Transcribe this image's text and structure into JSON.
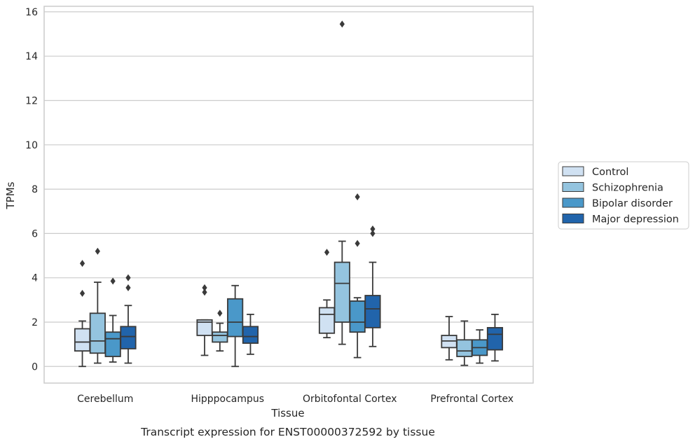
{
  "chart_data": {
    "type": "box",
    "xlabel": "Tissue",
    "ylabel": "TPMs",
    "caption": "Transcript expression for ENST00000372592 by tissue",
    "ylim": [
      -0.75,
      16.25
    ],
    "yticks": [
      0,
      2,
      4,
      6,
      8,
      10,
      12,
      14,
      16
    ],
    "grid": "horizontal",
    "legend_position": "right",
    "categories": [
      "Cerebellum",
      "Hipppocampus",
      "Orbitofontal Cortex",
      "Prefrontal Cortex"
    ],
    "series": [
      {
        "name": "Control",
        "color": "#d0e1f2",
        "boxes": [
          {
            "whisker_low": 0.0,
            "q1": 0.7,
            "median": 1.1,
            "q3": 1.7,
            "whisker_high": 2.05,
            "outliers": [
              3.3,
              4.65
            ]
          },
          {
            "whisker_low": 0.5,
            "q1": 1.4,
            "median": 2.0,
            "q3": 2.1,
            "whisker_high": 2.1,
            "outliers": [
              3.35,
              3.55
            ]
          },
          {
            "whisker_low": 1.3,
            "q1": 1.5,
            "median": 2.35,
            "q3": 2.65,
            "whisker_high": 3.0,
            "outliers": [
              5.15
            ]
          },
          {
            "whisker_low": 0.3,
            "q1": 0.85,
            "median": 1.15,
            "q3": 1.4,
            "whisker_high": 2.25,
            "outliers": []
          }
        ]
      },
      {
        "name": "Schizophrenia",
        "color": "#94c4df",
        "boxes": [
          {
            "whisker_low": 0.15,
            "q1": 0.6,
            "median": 1.15,
            "q3": 2.4,
            "whisker_high": 3.8,
            "outliers": [
              5.2
            ]
          },
          {
            "whisker_low": 0.7,
            "q1": 1.1,
            "median": 1.4,
            "q3": 1.55,
            "whisker_high": 1.95,
            "outliers": [
              2.4
            ]
          },
          {
            "whisker_low": 1.0,
            "q1": 2.0,
            "median": 3.75,
            "q3": 4.7,
            "whisker_high": 5.65,
            "outliers": [
              15.45
            ]
          },
          {
            "whisker_low": 0.05,
            "q1": 0.45,
            "median": 0.7,
            "q3": 1.2,
            "whisker_high": 2.05,
            "outliers": []
          }
        ]
      },
      {
        "name": "Bipolar disorder",
        "color": "#4a98c9",
        "boxes": [
          {
            "whisker_low": 0.2,
            "q1": 0.45,
            "median": 1.25,
            "q3": 1.55,
            "whisker_high": 2.3,
            "outliers": [
              3.85
            ]
          },
          {
            "whisker_low": 0.0,
            "q1": 1.35,
            "median": 2.0,
            "q3": 3.05,
            "whisker_high": 3.65,
            "outliers": []
          },
          {
            "whisker_low": 0.4,
            "q1": 1.55,
            "median": 2.0,
            "q3": 2.95,
            "whisker_high": 3.1,
            "outliers": [
              5.55,
              7.65
            ]
          },
          {
            "whisker_low": 0.15,
            "q1": 0.5,
            "median": 0.85,
            "q3": 1.2,
            "whisker_high": 1.65,
            "outliers": []
          }
        ]
      },
      {
        "name": "Major depression",
        "color": "#2164ab",
        "boxes": [
          {
            "whisker_low": 0.15,
            "q1": 0.8,
            "median": 1.35,
            "q3": 1.8,
            "whisker_high": 2.75,
            "outliers": [
              3.55,
              4.0
            ]
          },
          {
            "whisker_low": 0.55,
            "q1": 1.05,
            "median": 1.35,
            "q3": 1.8,
            "whisker_high": 2.35,
            "outliers": []
          },
          {
            "whisker_low": 0.9,
            "q1": 1.75,
            "median": 2.6,
            "q3": 3.2,
            "whisker_high": 4.7,
            "outliers": [
              6.0,
              6.2
            ]
          },
          {
            "whisker_low": 0.25,
            "q1": 0.75,
            "median": 1.45,
            "q3": 1.75,
            "whisker_high": 2.35,
            "outliers": []
          }
        ]
      }
    ]
  }
}
